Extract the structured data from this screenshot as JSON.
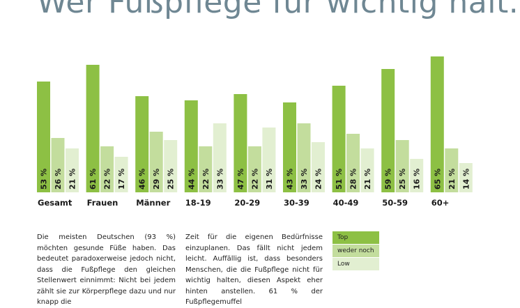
{
  "title": "Wer Fußpflege für wichtig hält...",
  "chart_data": {
    "type": "bar",
    "categories": [
      "Gesamt",
      "Frauen",
      "Männer",
      "18-19",
      "20-29",
      "30-39",
      "40-49",
      "50-59",
      "60+"
    ],
    "series": [
      {
        "name": "Top",
        "values": [
          53,
          61,
          46,
          44,
          47,
          43,
          51,
          59,
          65
        ],
        "labels": [
          "53 %",
          "61 %",
          "46 %",
          "44 %",
          "47 %",
          "43 %",
          "51 %",
          "59 %",
          "65 %"
        ]
      },
      {
        "name": "weder noch",
        "values": [
          26,
          22,
          29,
          22,
          22,
          33,
          28,
          25,
          21
        ],
        "labels": [
          "26 %",
          "22 %",
          "29 %",
          "22 %",
          "22 %",
          "33 %",
          "28 %",
          "25 %",
          "21 %"
        ]
      },
      {
        "name": "Low",
        "values": [
          21,
          17,
          25,
          33,
          31,
          24,
          21,
          16,
          14
        ],
        "labels": [
          "21 %",
          "17 %",
          "25 %",
          "33 %",
          "31 %",
          "24 %",
          "21 %",
          "16 %",
          "14 %"
        ]
      }
    ],
    "ylim": [
      0,
      65
    ],
    "grid": false,
    "legend_position": "bottom-right"
  },
  "colors": {
    "top": "#8dc044",
    "mid": "#c3dd9d",
    "low": "#e2efd1",
    "title": "#6f8793"
  },
  "text": {
    "col1": "Die meisten Deutschen (93 %) möchten gesunde Füße haben. Das bedeutet paradoxerweise jedoch nicht, dass die Fußpflege den gleichen Stellenwert einnimmt: Nicht bei jedem zählt sie zur Körperpflege dazu und nur knapp die",
    "col2": "Zeit für die eigenen Bedürfnisse einzuplanen. Das fällt nicht jedem leicht. Auffällig ist, dass besonders Menschen, die die Fußpflege nicht für wichtig halten, diesen Aspekt eher hinten anstellen. 61 % der Fußpflegemuffel"
  },
  "legend": {
    "top": "Top",
    "mid": "weder noch",
    "low": "Low"
  }
}
